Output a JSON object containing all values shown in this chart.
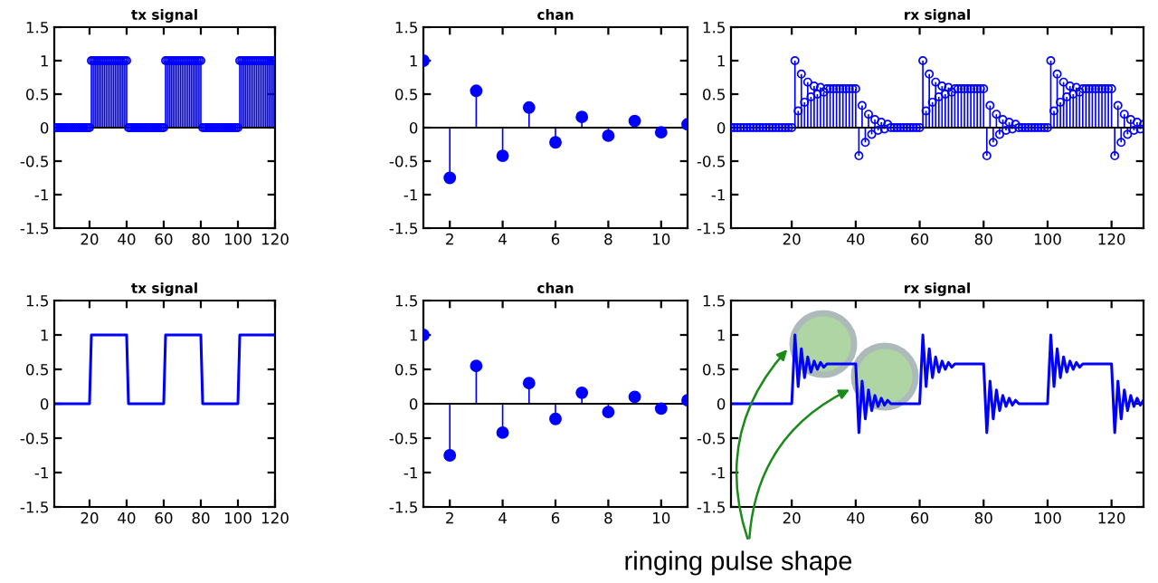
{
  "chart_data": [
    {
      "type": "lollipop",
      "title": "tx signal",
      "color": "#0000ff",
      "marker": "circle",
      "xlim": [
        1,
        120
      ],
      "xticks": [
        20,
        40,
        60,
        80,
        100,
        120
      ],
      "ylim": [
        -1.5,
        1.5
      ],
      "yticks": [
        -1.5,
        -1,
        -0.5,
        0,
        0.5,
        1,
        1.5
      ],
      "x": [
        1,
        2,
        3,
        4,
        5,
        6,
        7,
        8,
        9,
        10,
        11,
        12,
        13,
        14,
        15,
        16,
        17,
        18,
        19,
        20,
        21,
        22,
        23,
        24,
        25,
        26,
        27,
        28,
        29,
        30,
        31,
        32,
        33,
        34,
        35,
        36,
        37,
        38,
        39,
        40,
        41,
        42,
        43,
        44,
        45,
        46,
        47,
        48,
        49,
        50,
        51,
        52,
        53,
        54,
        55,
        56,
        57,
        58,
        59,
        60,
        61,
        62,
        63,
        64,
        65,
        66,
        67,
        68,
        69,
        70,
        71,
        72,
        73,
        74,
        75,
        76,
        77,
        78,
        79,
        80,
        81,
        82,
        83,
        84,
        85,
        86,
        87,
        88,
        89,
        90,
        91,
        92,
        93,
        94,
        95,
        96,
        97,
        98,
        99,
        100,
        101,
        102,
        103,
        104,
        105,
        106,
        107,
        108,
        109,
        110,
        111,
        112,
        113,
        114,
        115,
        116,
        117,
        118,
        119,
        120
      ],
      "values": [
        0,
        0,
        0,
        0,
        0,
        0,
        0,
        0,
        0,
        0,
        0,
        0,
        0,
        0,
        0,
        0,
        0,
        0,
        0,
        0,
        1,
        1,
        1,
        1,
        1,
        1,
        1,
        1,
        1,
        1,
        1,
        1,
        1,
        1,
        1,
        1,
        1,
        1,
        1,
        1,
        0,
        0,
        0,
        0,
        0,
        0,
        0,
        0,
        0,
        0,
        0,
        0,
        0,
        0,
        0,
        0,
        0,
        0,
        0,
        0,
        1,
        1,
        1,
        1,
        1,
        1,
        1,
        1,
        1,
        1,
        1,
        1,
        1,
        1,
        1,
        1,
        1,
        1,
        1,
        1,
        0,
        0,
        0,
        0,
        0,
        0,
        0,
        0,
        0,
        0,
        0,
        0,
        0,
        0,
        0,
        0,
        0,
        0,
        0,
        0,
        1,
        1,
        1,
        1,
        1,
        1,
        1,
        1,
        1,
        1,
        1,
        1,
        1,
        1,
        1,
        1,
        1,
        1,
        1,
        1
      ]
    },
    {
      "type": "lollipop",
      "title": "chan",
      "color": "#0000ff",
      "marker": "circle",
      "xlim": [
        1,
        11
      ],
      "xticks": [
        2,
        4,
        6,
        8,
        10
      ],
      "ylim": [
        -1.5,
        1.5
      ],
      "yticks": [
        -1.5,
        -1,
        -0.5,
        0,
        0.5,
        1,
        1.5
      ],
      "x": [
        1,
        2,
        3,
        4,
        5,
        6,
        7,
        8,
        9,
        10,
        11
      ],
      "values": [
        1,
        -0.75,
        0.55,
        -0.42,
        0.3,
        -0.22,
        0.16,
        -0.12,
        0.1,
        -0.07,
        0.05
      ]
    },
    {
      "type": "lollipop",
      "title": "rx signal",
      "color": "#0000ff",
      "marker": "circle",
      "xlim": [
        1,
        130
      ],
      "xticks": [
        20,
        40,
        60,
        80,
        100,
        120
      ],
      "ylim": [
        -1.5,
        1.5
      ],
      "yticks": [
        -1.5,
        -1,
        -0.5,
        0,
        0.5,
        1,
        1.5
      ],
      "x": [
        1,
        2,
        3,
        4,
        5,
        6,
        7,
        8,
        9,
        10,
        11,
        12,
        13,
        14,
        15,
        16,
        17,
        18,
        19,
        20,
        21,
        22,
        23,
        24,
        25,
        26,
        27,
        28,
        29,
        30,
        31,
        32,
        33,
        34,
        35,
        36,
        37,
        38,
        39,
        40,
        41,
        42,
        43,
        44,
        45,
        46,
        47,
        48,
        49,
        50,
        51,
        52,
        53,
        54,
        55,
        56,
        57,
        58,
        59,
        60,
        61,
        62,
        63,
        64,
        65,
        66,
        67,
        68,
        69,
        70,
        71,
        72,
        73,
        74,
        75,
        76,
        77,
        78,
        79,
        80,
        81,
        82,
        83,
        84,
        85,
        86,
        87,
        88,
        89,
        90,
        91,
        92,
        93,
        94,
        95,
        96,
        97,
        98,
        99,
        100,
        101,
        102,
        103,
        104,
        105,
        106,
        107,
        108,
        109,
        110,
        111,
        112,
        113,
        114,
        115,
        116,
        117,
        118,
        119,
        120,
        121,
        122,
        123,
        124,
        125,
        126,
        127,
        128,
        129,
        130
      ],
      "values": [
        0,
        0,
        0,
        0,
        0,
        0,
        0,
        0,
        0,
        0,
        0,
        0,
        0,
        0,
        0,
        0,
        0,
        0,
        0,
        0,
        1,
        0.25,
        0.8,
        0.38,
        0.68,
        0.46,
        0.62,
        0.5,
        0.6,
        0.53,
        0.58,
        0.58,
        0.58,
        0.58,
        0.58,
        0.58,
        0.58,
        0.58,
        0.58,
        0.58,
        -0.42,
        0.33,
        -0.22,
        0.2,
        -0.1,
        0.12,
        -0.04,
        0.08,
        -0.02,
        0.05,
        0,
        0,
        0,
        0,
        0,
        0,
        0,
        0,
        0,
        0,
        1,
        0.25,
        0.8,
        0.38,
        0.68,
        0.46,
        0.62,
        0.5,
        0.6,
        0.53,
        0.58,
        0.58,
        0.58,
        0.58,
        0.58,
        0.58,
        0.58,
        0.58,
        0.58,
        0.58,
        -0.42,
        0.33,
        -0.22,
        0.2,
        -0.1,
        0.12,
        -0.04,
        0.08,
        -0.02,
        0.05,
        0,
        0,
        0,
        0,
        0,
        0,
        0,
        0,
        0,
        0,
        1,
        0.25,
        0.8,
        0.38,
        0.68,
        0.46,
        0.62,
        0.5,
        0.6,
        0.53,
        0.58,
        0.58,
        0.58,
        0.58,
        0.58,
        0.58,
        0.58,
        0.58,
        0.58,
        0.58,
        -0.42,
        0.33,
        -0.22,
        0.2,
        -0.1,
        0.12,
        -0.04,
        0.08,
        -0.02,
        0.05
      ]
    },
    {
      "type": "line",
      "title": "tx signal",
      "color": "#0000ff",
      "xlim": [
        1,
        120
      ],
      "xticks": [
        20,
        40,
        60,
        80,
        100,
        120
      ],
      "ylim": [
        -1.5,
        1.5
      ],
      "yticks": [
        -1.5,
        -1,
        -0.5,
        0,
        0.5,
        1,
        1.5
      ],
      "x": [
        1,
        2,
        3,
        4,
        5,
        6,
        7,
        8,
        9,
        10,
        11,
        12,
        13,
        14,
        15,
        16,
        17,
        18,
        19,
        20,
        21,
        22,
        23,
        24,
        25,
        26,
        27,
        28,
        29,
        30,
        31,
        32,
        33,
        34,
        35,
        36,
        37,
        38,
        39,
        40,
        41,
        42,
        43,
        44,
        45,
        46,
        47,
        48,
        49,
        50,
        51,
        52,
        53,
        54,
        55,
        56,
        57,
        58,
        59,
        60,
        61,
        62,
        63,
        64,
        65,
        66,
        67,
        68,
        69,
        70,
        71,
        72,
        73,
        74,
        75,
        76,
        77,
        78,
        79,
        80,
        81,
        82,
        83,
        84,
        85,
        86,
        87,
        88,
        89,
        90,
        91,
        92,
        93,
        94,
        95,
        96,
        97,
        98,
        99,
        100,
        101,
        102,
        103,
        104,
        105,
        106,
        107,
        108,
        109,
        110,
        111,
        112,
        113,
        114,
        115,
        116,
        117,
        118,
        119,
        120
      ],
      "values": [
        0,
        0,
        0,
        0,
        0,
        0,
        0,
        0,
        0,
        0,
        0,
        0,
        0,
        0,
        0,
        0,
        0,
        0,
        0,
        0,
        1,
        1,
        1,
        1,
        1,
        1,
        1,
        1,
        1,
        1,
        1,
        1,
        1,
        1,
        1,
        1,
        1,
        1,
        1,
        1,
        0,
        0,
        0,
        0,
        0,
        0,
        0,
        0,
        0,
        0,
        0,
        0,
        0,
        0,
        0,
        0,
        0,
        0,
        0,
        0,
        1,
        1,
        1,
        1,
        1,
        1,
        1,
        1,
        1,
        1,
        1,
        1,
        1,
        1,
        1,
        1,
        1,
        1,
        1,
        1,
        0,
        0,
        0,
        0,
        0,
        0,
        0,
        0,
        0,
        0,
        0,
        0,
        0,
        0,
        0,
        0,
        0,
        0,
        0,
        0,
        1,
        1,
        1,
        1,
        1,
        1,
        1,
        1,
        1,
        1,
        1,
        1,
        1,
        1,
        1,
        1,
        1,
        1,
        1,
        1
      ]
    },
    {
      "type": "lollipop",
      "title": "chan",
      "color": "#0000ff",
      "marker": "circle",
      "xlim": [
        1,
        11
      ],
      "xticks": [
        2,
        4,
        6,
        8,
        10
      ],
      "ylim": [
        -1.5,
        1.5
      ],
      "yticks": [
        -1.5,
        -1,
        -0.5,
        0,
        0.5,
        1,
        1.5
      ],
      "x": [
        1,
        2,
        3,
        4,
        5,
        6,
        7,
        8,
        9,
        10,
        11
      ],
      "values": [
        1,
        -0.75,
        0.55,
        -0.42,
        0.3,
        -0.22,
        0.16,
        -0.12,
        0.1,
        -0.07,
        0.05
      ]
    },
    {
      "type": "line",
      "title": "rx signal",
      "color": "#0000ff",
      "xlim": [
        1,
        130
      ],
      "xticks": [
        20,
        40,
        60,
        80,
        100,
        120
      ],
      "ylim": [
        -1.5,
        1.5
      ],
      "yticks": [
        -1.5,
        -1,
        -0.5,
        0,
        0.5,
        1,
        1.5
      ],
      "annotations": [
        "ringing pulse shape"
      ],
      "x": [
        1,
        2,
        3,
        4,
        5,
        6,
        7,
        8,
        9,
        10,
        11,
        12,
        13,
        14,
        15,
        16,
        17,
        18,
        19,
        20,
        21,
        22,
        23,
        24,
        25,
        26,
        27,
        28,
        29,
        30,
        31,
        32,
        33,
        34,
        35,
        36,
        37,
        38,
        39,
        40,
        41,
        42,
        43,
        44,
        45,
        46,
        47,
        48,
        49,
        50,
        51,
        52,
        53,
        54,
        55,
        56,
        57,
        58,
        59,
        60,
        61,
        62,
        63,
        64,
        65,
        66,
        67,
        68,
        69,
        70,
        71,
        72,
        73,
        74,
        75,
        76,
        77,
        78,
        79,
        80,
        81,
        82,
        83,
        84,
        85,
        86,
        87,
        88,
        89,
        90,
        91,
        92,
        93,
        94,
        95,
        96,
        97,
        98,
        99,
        100,
        101,
        102,
        103,
        104,
        105,
        106,
        107,
        108,
        109,
        110,
        111,
        112,
        113,
        114,
        115,
        116,
        117,
        118,
        119,
        120,
        121,
        122,
        123,
        124,
        125,
        126,
        127,
        128,
        129,
        130
      ],
      "values": [
        0,
        0,
        0,
        0,
        0,
        0,
        0,
        0,
        0,
        0,
        0,
        0,
        0,
        0,
        0,
        0,
        0,
        0,
        0,
        0,
        1,
        0.25,
        0.8,
        0.38,
        0.68,
        0.46,
        0.62,
        0.5,
        0.6,
        0.53,
        0.58,
        0.58,
        0.58,
        0.58,
        0.58,
        0.58,
        0.58,
        0.58,
        0.58,
        0.58,
        -0.42,
        0.33,
        -0.22,
        0.2,
        -0.1,
        0.12,
        -0.04,
        0.08,
        -0.02,
        0.05,
        0,
        0,
        0,
        0,
        0,
        0,
        0,
        0,
        0,
        0,
        1,
        0.25,
        0.8,
        0.38,
        0.68,
        0.46,
        0.62,
        0.5,
        0.6,
        0.53,
        0.58,
        0.58,
        0.58,
        0.58,
        0.58,
        0.58,
        0.58,
        0.58,
        0.58,
        0.58,
        -0.42,
        0.33,
        -0.22,
        0.2,
        -0.1,
        0.12,
        -0.04,
        0.08,
        -0.02,
        0.05,
        0,
        0,
        0,
        0,
        0,
        0,
        0,
        0,
        0,
        0,
        1,
        0.25,
        0.8,
        0.38,
        0.68,
        0.46,
        0.62,
        0.5,
        0.6,
        0.53,
        0.58,
        0.58,
        0.58,
        0.58,
        0.58,
        0.58,
        0.58,
        0.58,
        0.58,
        0.58,
        -0.42,
        0.33,
        -0.22,
        0.2,
        -0.1,
        0.12,
        -0.04,
        0.08,
        -0.02,
        0.05
      ]
    }
  ]
}
